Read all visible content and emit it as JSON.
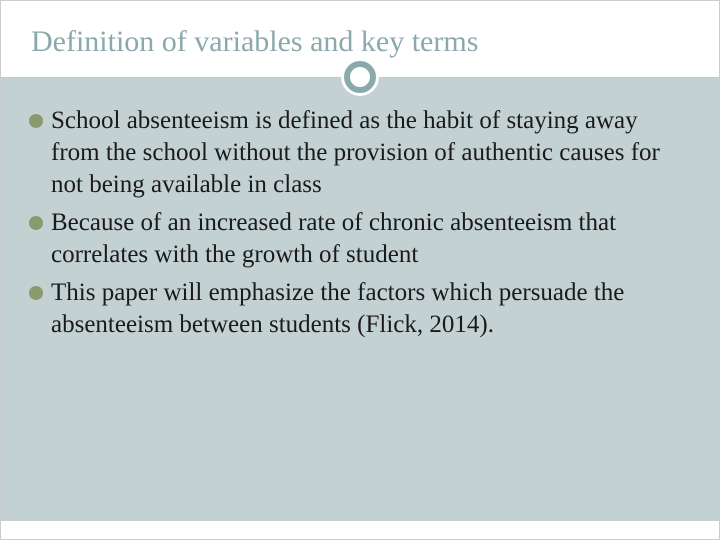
{
  "slide": {
    "title": "Definition of variables and key terms",
    "bullets": [
      "School absenteeism is defined as the habit of staying away from the school without the provision of authentic causes for not being available in class",
      "Because of an increased rate of chronic absenteeism that correlates with the growth of student",
      "This paper will emphasize the factors which persuade the absenteeism between students (Flick, 2014)."
    ]
  },
  "colors": {
    "title_color": "#8ba9ad",
    "body_bg": "#c3d1d3",
    "bullet_color": "#8a9a6f",
    "divider_color": "#b8c9cb",
    "circle_border": "#8ba9ad",
    "text_color": "#1a1a1a"
  },
  "typography": {
    "title_fontsize": 30,
    "body_fontsize": 25,
    "font_family": "Georgia, serif"
  }
}
